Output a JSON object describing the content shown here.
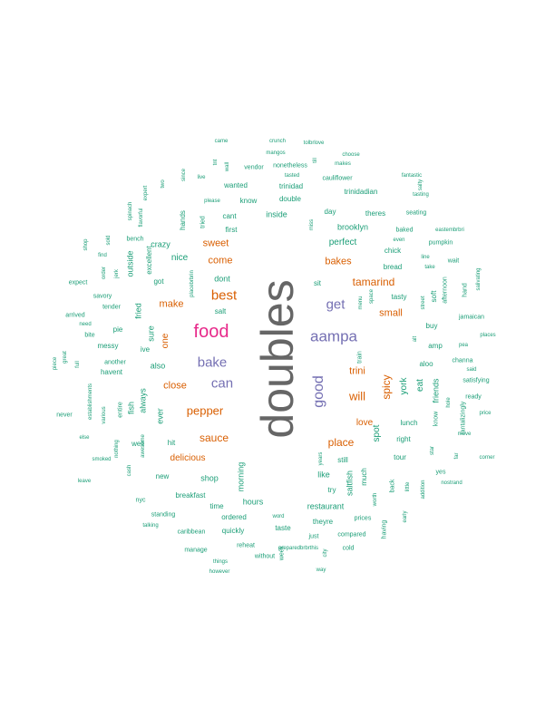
{
  "colors": {
    "gray": "#666666",
    "purple": "#7570b3",
    "orange": "#d95f02",
    "green": "#1b9e77",
    "pink": "#e7298a"
  },
  "words": [
    {
      "text": "doubles",
      "color": "gray",
      "rot": true
    },
    {
      "text": "food",
      "color": "pink"
    },
    {
      "text": "aampa",
      "color": "purple"
    },
    {
      "text": "best",
      "color": "orange"
    },
    {
      "text": "bake",
      "color": "purple"
    },
    {
      "text": "get",
      "color": "purple"
    },
    {
      "text": "can",
      "color": "purple"
    },
    {
      "text": "good",
      "color": "purple",
      "rot": true
    },
    {
      "text": "tamarind",
      "color": "orange"
    },
    {
      "text": "sauce",
      "color": "orange"
    },
    {
      "text": "pepper",
      "color": "orange"
    },
    {
      "text": "place",
      "color": "orange"
    },
    {
      "text": "will",
      "color": "orange"
    },
    {
      "text": "sweet",
      "color": "orange"
    },
    {
      "text": "come",
      "color": "orange"
    },
    {
      "text": "bakes",
      "color": "orange"
    },
    {
      "text": "make",
      "color": "orange"
    },
    {
      "text": "small",
      "color": "orange"
    },
    {
      "text": "trini",
      "color": "orange"
    },
    {
      "text": "spicy",
      "color": "orange",
      "rot": true
    },
    {
      "text": "close",
      "color": "orange"
    },
    {
      "text": "love",
      "color": "orange"
    },
    {
      "text": "delicious",
      "color": "orange"
    },
    {
      "text": "one",
      "color": "orange",
      "rot": true
    },
    {
      "text": "perfect",
      "color": "green"
    },
    {
      "text": "brooklyn",
      "color": "green"
    },
    {
      "text": "inside",
      "color": "green"
    },
    {
      "text": "know",
      "color": "green"
    },
    {
      "text": "double",
      "color": "green"
    },
    {
      "text": "trinidad",
      "color": "green"
    },
    {
      "text": "trinidadian",
      "color": "green"
    },
    {
      "text": "wanted",
      "color": "green"
    },
    {
      "text": "cant",
      "color": "green"
    },
    {
      "text": "first",
      "color": "green"
    },
    {
      "text": "dont",
      "color": "green"
    },
    {
      "text": "salt",
      "color": "green"
    },
    {
      "text": "sit",
      "color": "green"
    },
    {
      "text": "tasty",
      "color": "green"
    },
    {
      "text": "bread",
      "color": "green"
    },
    {
      "text": "chick",
      "color": "green"
    },
    {
      "text": "day",
      "color": "green"
    },
    {
      "text": "theres",
      "color": "green"
    },
    {
      "text": "also",
      "color": "green"
    },
    {
      "text": "ive",
      "color": "green"
    },
    {
      "text": "messy",
      "color": "green"
    },
    {
      "text": "pie",
      "color": "green"
    },
    {
      "text": "havent",
      "color": "green"
    },
    {
      "text": "another",
      "color": "green"
    },
    {
      "text": "got",
      "color": "green"
    },
    {
      "text": "well",
      "color": "green"
    },
    {
      "text": "hit",
      "color": "green"
    },
    {
      "text": "new",
      "color": "green"
    },
    {
      "text": "shop",
      "color": "green"
    },
    {
      "text": "breakfast",
      "color": "green"
    },
    {
      "text": "time",
      "color": "green"
    },
    {
      "text": "hours",
      "color": "green"
    },
    {
      "text": "ordered",
      "color": "green"
    },
    {
      "text": "quickly",
      "color": "green"
    },
    {
      "text": "taste",
      "color": "green"
    },
    {
      "text": "restaurant",
      "color": "green"
    },
    {
      "text": "theyre",
      "color": "green"
    },
    {
      "text": "like",
      "color": "green"
    },
    {
      "text": "still",
      "color": "green"
    },
    {
      "text": "try",
      "color": "green"
    },
    {
      "text": "right",
      "color": "green"
    },
    {
      "text": "tour",
      "color": "green"
    },
    {
      "text": "lunch",
      "color": "green"
    },
    {
      "text": "buy",
      "color": "green"
    },
    {
      "text": "amp",
      "color": "green"
    },
    {
      "text": "aloo",
      "color": "green"
    },
    {
      "text": "jamaican",
      "color": "green"
    },
    {
      "text": "salivating",
      "color": "green",
      "rot": true
    },
    {
      "text": "channa",
      "color": "green"
    },
    {
      "text": "satisfying",
      "color": "green"
    },
    {
      "text": "ready",
      "color": "green"
    },
    {
      "text": "price",
      "color": "green"
    },
    {
      "text": "yes",
      "color": "green"
    },
    {
      "text": "nostrand",
      "color": "green"
    },
    {
      "text": "pumpkin",
      "color": "green"
    },
    {
      "text": "wait",
      "color": "green"
    },
    {
      "text": "seating",
      "color": "green"
    },
    {
      "text": "baked",
      "color": "green"
    },
    {
      "text": "eastembrbri",
      "color": "green"
    },
    {
      "text": "even",
      "color": "green"
    },
    {
      "text": "take",
      "color": "green"
    },
    {
      "text": "line",
      "color": "green"
    },
    {
      "text": "places",
      "color": "green"
    },
    {
      "text": "pea",
      "color": "green"
    },
    {
      "text": "said",
      "color": "green"
    },
    {
      "text": "move",
      "color": "green"
    },
    {
      "text": "corner",
      "color": "green"
    },
    {
      "text": "tantalizingly",
      "color": "green",
      "rot": true
    },
    {
      "text": "salty",
      "color": "green",
      "rot": true
    },
    {
      "text": "tasting",
      "color": "green"
    },
    {
      "text": "fantastic",
      "color": "green"
    },
    {
      "text": "cauliflower",
      "color": "green"
    },
    {
      "text": "makes",
      "color": "green"
    },
    {
      "text": "choose",
      "color": "green"
    },
    {
      "text": "tolbrlove",
      "color": "green"
    },
    {
      "text": "crunch",
      "color": "green"
    },
    {
      "text": "mangos",
      "color": "green"
    },
    {
      "text": "nonetheless",
      "color": "green"
    },
    {
      "text": "tasted",
      "color": "green"
    },
    {
      "text": "came",
      "color": "green"
    },
    {
      "text": "vendor",
      "color": "green"
    },
    {
      "text": "please",
      "color": "green"
    },
    {
      "text": "bench",
      "color": "green"
    },
    {
      "text": "expect",
      "color": "green"
    },
    {
      "text": "savory",
      "color": "green"
    },
    {
      "text": "arrived",
      "color": "green"
    },
    {
      "text": "tender",
      "color": "green"
    },
    {
      "text": "need",
      "color": "green"
    },
    {
      "text": "bite",
      "color": "green"
    },
    {
      "text": "find",
      "color": "green"
    },
    {
      "text": "never",
      "color": "green"
    },
    {
      "text": "else",
      "color": "green"
    },
    {
      "text": "smoked",
      "color": "green"
    },
    {
      "text": "leave",
      "color": "green"
    },
    {
      "text": "nyc",
      "color": "green"
    },
    {
      "text": "standing",
      "color": "green"
    },
    {
      "text": "talking",
      "color": "green"
    },
    {
      "text": "caribbean",
      "color": "green"
    },
    {
      "text": "manage",
      "color": "green"
    },
    {
      "text": "reheat",
      "color": "green"
    },
    {
      "text": "things",
      "color": "green"
    },
    {
      "text": "however",
      "color": "green"
    },
    {
      "text": "without",
      "color": "green"
    },
    {
      "text": "preparedbrbrthis",
      "color": "green"
    },
    {
      "text": "way",
      "color": "green"
    },
    {
      "text": "just",
      "color": "green"
    },
    {
      "text": "compared",
      "color": "green"
    },
    {
      "text": "cold",
      "color": "green"
    },
    {
      "text": "prices",
      "color": "green"
    },
    {
      "text": "word",
      "color": "green"
    },
    {
      "text": "crazy",
      "color": "green"
    },
    {
      "text": "nice",
      "color": "green"
    },
    {
      "text": "excellent",
      "color": "green",
      "rot": true
    },
    {
      "text": "outside",
      "color": "green",
      "rot": true
    },
    {
      "text": "fried",
      "color": "green",
      "rot": true
    },
    {
      "text": "sure",
      "color": "green",
      "rot": true
    },
    {
      "text": "always",
      "color": "green",
      "rot": true
    },
    {
      "text": "fish",
      "color": "green",
      "rot": true
    },
    {
      "text": "ever",
      "color": "green",
      "rot": true
    },
    {
      "text": "morning",
      "color": "green",
      "rot": true
    },
    {
      "text": "hands",
      "color": "green",
      "rot": true
    },
    {
      "text": "tried",
      "color": "green",
      "rot": true
    },
    {
      "text": "york",
      "color": "green",
      "rot": true
    },
    {
      "text": "eat",
      "color": "green",
      "rot": true
    },
    {
      "text": "friends",
      "color": "green",
      "rot": true
    },
    {
      "text": "spot",
      "color": "green",
      "rot": true
    },
    {
      "text": "much",
      "color": "green",
      "rot": true
    },
    {
      "text": "saltfish",
      "color": "green",
      "rot": true
    },
    {
      "text": "back",
      "color": "green",
      "rot": true
    },
    {
      "text": "little",
      "color": "green",
      "rot": true
    },
    {
      "text": "addition",
      "color": "green",
      "rot": true
    },
    {
      "text": "early",
      "color": "green",
      "rot": true
    },
    {
      "text": "having",
      "color": "green",
      "rot": true
    },
    {
      "text": "worth",
      "color": "green",
      "rot": true
    },
    {
      "text": "week",
      "color": "green",
      "rot": true
    },
    {
      "text": "city",
      "color": "green",
      "rot": true
    },
    {
      "text": "years",
      "color": "green",
      "rot": true
    },
    {
      "text": "star",
      "color": "green",
      "rot": true
    },
    {
      "text": "far",
      "color": "green",
      "rot": true
    },
    {
      "text": "know",
      "color": "green",
      "rot": true
    },
    {
      "text": "hole",
      "color": "green",
      "rot": true
    },
    {
      "text": "alt",
      "color": "green",
      "rot": true
    },
    {
      "text": "soft",
      "color": "green",
      "rot": true
    },
    {
      "text": "afternoon",
      "color": "green",
      "rot": true
    },
    {
      "text": "hand",
      "color": "green",
      "rot": true
    },
    {
      "text": "street",
      "color": "green",
      "rot": true
    },
    {
      "text": "menu",
      "color": "green",
      "rot": true
    },
    {
      "text": "space",
      "color": "green",
      "rot": true
    },
    {
      "text": "train",
      "color": "green",
      "rot": true
    },
    {
      "text": "miss",
      "color": "green",
      "rot": true
    },
    {
      "text": "till",
      "color": "green",
      "rot": true
    },
    {
      "text": "live",
      "color": "green"
    },
    {
      "text": "tnt",
      "color": "green",
      "rot": true
    },
    {
      "text": "wall",
      "color": "green",
      "rot": true
    },
    {
      "text": "since",
      "color": "green",
      "rot": true
    },
    {
      "text": "two",
      "color": "green",
      "rot": true
    },
    {
      "text": "expert",
      "color": "green",
      "rot": true
    },
    {
      "text": "flavorful",
      "color": "green",
      "rot": true
    },
    {
      "text": "spinach",
      "color": "green",
      "rot": true
    },
    {
      "text": "sold",
      "color": "green",
      "rot": true
    },
    {
      "text": "shop",
      "color": "green",
      "rot": true
    },
    {
      "text": "order",
      "color": "green",
      "rot": true
    },
    {
      "text": "jerk",
      "color": "green",
      "rot": true
    },
    {
      "text": "placebrbrin",
      "color": "green",
      "rot": true
    },
    {
      "text": "piece",
      "color": "green",
      "rot": true
    },
    {
      "text": "great",
      "color": "green",
      "rot": true
    },
    {
      "text": "full",
      "color": "green",
      "rot": true
    },
    {
      "text": "establishments",
      "color": "green",
      "rot": true
    },
    {
      "text": "various",
      "color": "green",
      "rot": true
    },
    {
      "text": "entire",
      "color": "green",
      "rot": true
    },
    {
      "text": "nothing",
      "color": "green",
      "rot": true
    },
    {
      "text": "awesome",
      "color": "green",
      "rot": true
    },
    {
      "text": "cash",
      "color": "green",
      "rot": true
    },
    {
      "text": "believe",
      "color": "green",
      "rot": true
    },
    {
      "text": "better",
      "color": "green",
      "rot": true
    },
    {
      "text": "goods",
      "color": "green",
      "rot": true
    }
  ]
}
